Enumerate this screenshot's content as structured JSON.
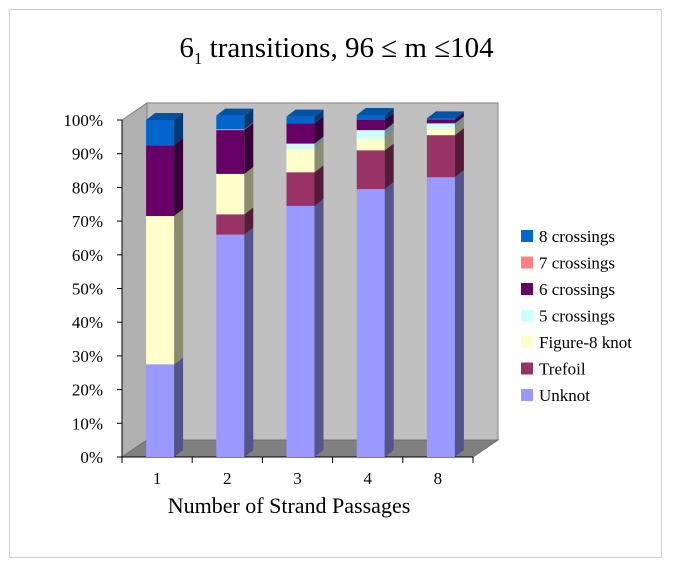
{
  "chart_data": {
    "type": "bar",
    "stacked": true,
    "three_d": true,
    "title": {
      "prefix": "6",
      "subscript": "1",
      "suffix": " transitions, 96 ≤ m ≤104"
    },
    "xlabel": "Number of Strand Passages",
    "ylabel": "",
    "ylim": [
      0,
      100
    ],
    "y_ticks": [
      "0%",
      "10%",
      "20%",
      "30%",
      "40%",
      "50%",
      "60%",
      "70%",
      "80%",
      "90%",
      "100%"
    ],
    "categories": [
      "1",
      "2",
      "3",
      "4",
      "8"
    ],
    "grid": false,
    "legend_position": "right",
    "series": [
      {
        "name": "Unknot",
        "color": "#9999ff",
        "values": [
          27.5,
          66,
          74.5,
          79.5,
          83
        ]
      },
      {
        "name": "Trefoil",
        "color": "#993366",
        "values": [
          0,
          6,
          10,
          11.5,
          12.5
        ]
      },
      {
        "name": "Figure-8 knot",
        "color": "#ffffcc",
        "values": [
          44,
          12,
          7,
          3.5,
          2
        ]
      },
      {
        "name": "5 crossings",
        "color": "#ccffff",
        "values": [
          0,
          0,
          1.5,
          2.5,
          1.5
        ]
      },
      {
        "name": "6 crossings",
        "color": "#660066",
        "values": [
          21,
          13,
          6,
          3,
          1
        ]
      },
      {
        "name": "7 crossings",
        "color": "#ff8080",
        "values": [
          0,
          0.3,
          0,
          0,
          0
        ]
      },
      {
        "name": "8 crossings",
        "color": "#0066cc",
        "values": [
          7.5,
          4,
          2,
          1.5,
          0.5
        ]
      }
    ],
    "legend_order": [
      "8 crossings",
      "7 crossings",
      "6 crossings",
      "5 crossings",
      "Figure-8 knot",
      "Trefoil",
      "Unknot"
    ]
  }
}
